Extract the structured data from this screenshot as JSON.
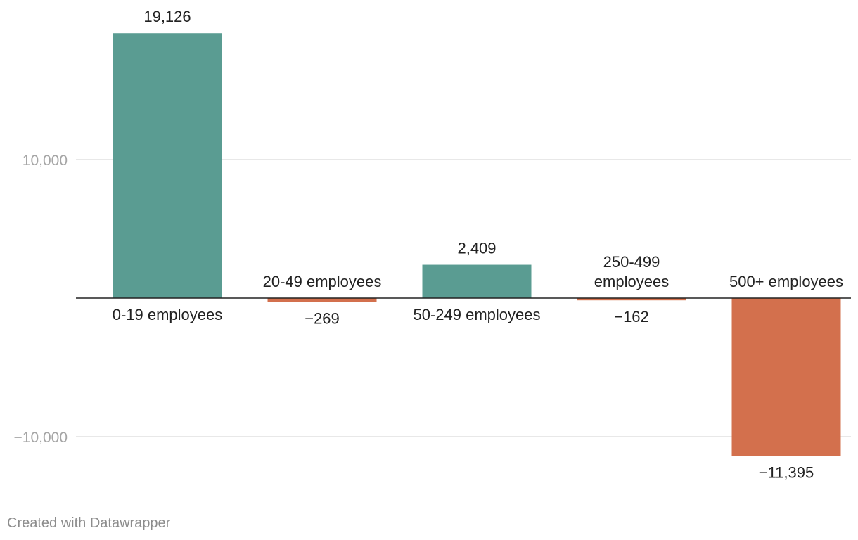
{
  "chart_data": {
    "type": "bar",
    "categories": [
      "0-19 employees",
      "20-49 employees",
      "50-249 employees",
      "250-499 employees",
      "500+ employees"
    ],
    "category_lines": [
      [
        "0-19 employees"
      ],
      [
        "20-49 employees"
      ],
      [
        "50-249 employees"
      ],
      [
        "250-499",
        "employees"
      ],
      [
        "500+ employees"
      ]
    ],
    "values": [
      19126,
      -269,
      2409,
      -162,
      -11395
    ],
    "value_labels": [
      "19,126",
      "−269",
      "2,409",
      "−162",
      "−11,395"
    ],
    "yticks": [
      -10000,
      10000
    ],
    "ytick_labels": [
      "−10,000",
      "10,000"
    ],
    "ylim": [
      -12800,
      21200
    ],
    "grid": true,
    "title": "",
    "xlabel": "",
    "ylabel": "",
    "colors": {
      "positive": "#5a9c92",
      "negative": "#d3704d"
    }
  },
  "footer": {
    "credit": "Created with Datawrapper"
  }
}
